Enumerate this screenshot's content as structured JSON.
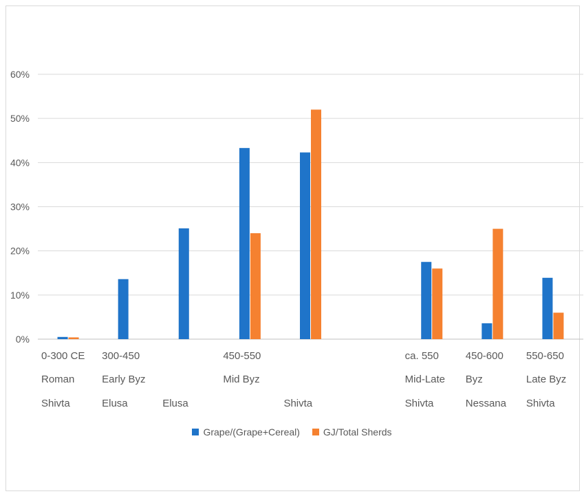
{
  "chart_data": {
    "type": "bar",
    "title": "",
    "xlabel": "",
    "ylabel": "",
    "ylim": [
      0,
      0.6
    ],
    "yticks": [
      "0%",
      "10%",
      "20%",
      "30%",
      "40%",
      "50%",
      "60%"
    ],
    "grid": true,
    "legend_position": "bottom",
    "categories": [
      {
        "date": "0-300 CE",
        "period": "Roman",
        "site": "Shivta"
      },
      {
        "date": "300-450",
        "period": "Early Byz",
        "site": "Elusa"
      },
      {
        "date": "",
        "period": "",
        "site": "Elusa"
      },
      {
        "date": "450-550",
        "period": "Mid Byz",
        "site": ""
      },
      {
        "date": "",
        "period": "",
        "site": "Shivta"
      },
      {
        "date": "",
        "period": "",
        "site": ""
      },
      {
        "date": "ca. 550",
        "period": "Mid-Late",
        "site": "Shivta"
      },
      {
        "date": "450-600",
        "period": "Byz",
        "site": "Nessana"
      },
      {
        "date": "550-650",
        "period": "Late Byz",
        "site": "Shivta"
      }
    ],
    "series": [
      {
        "name": "Grape/(Grape+Cereal)",
        "color": "#1f74c9",
        "values": [
          0.005,
          0.136,
          0.251,
          0.433,
          0.423,
          null,
          0.175,
          0.036,
          0.139
        ]
      },
      {
        "name": "GJ/Total Sherds",
        "color": "#f58130",
        "values": [
          0.004,
          null,
          null,
          0.24,
          0.52,
          null,
          0.16,
          0.25,
          0.06
        ]
      }
    ]
  }
}
